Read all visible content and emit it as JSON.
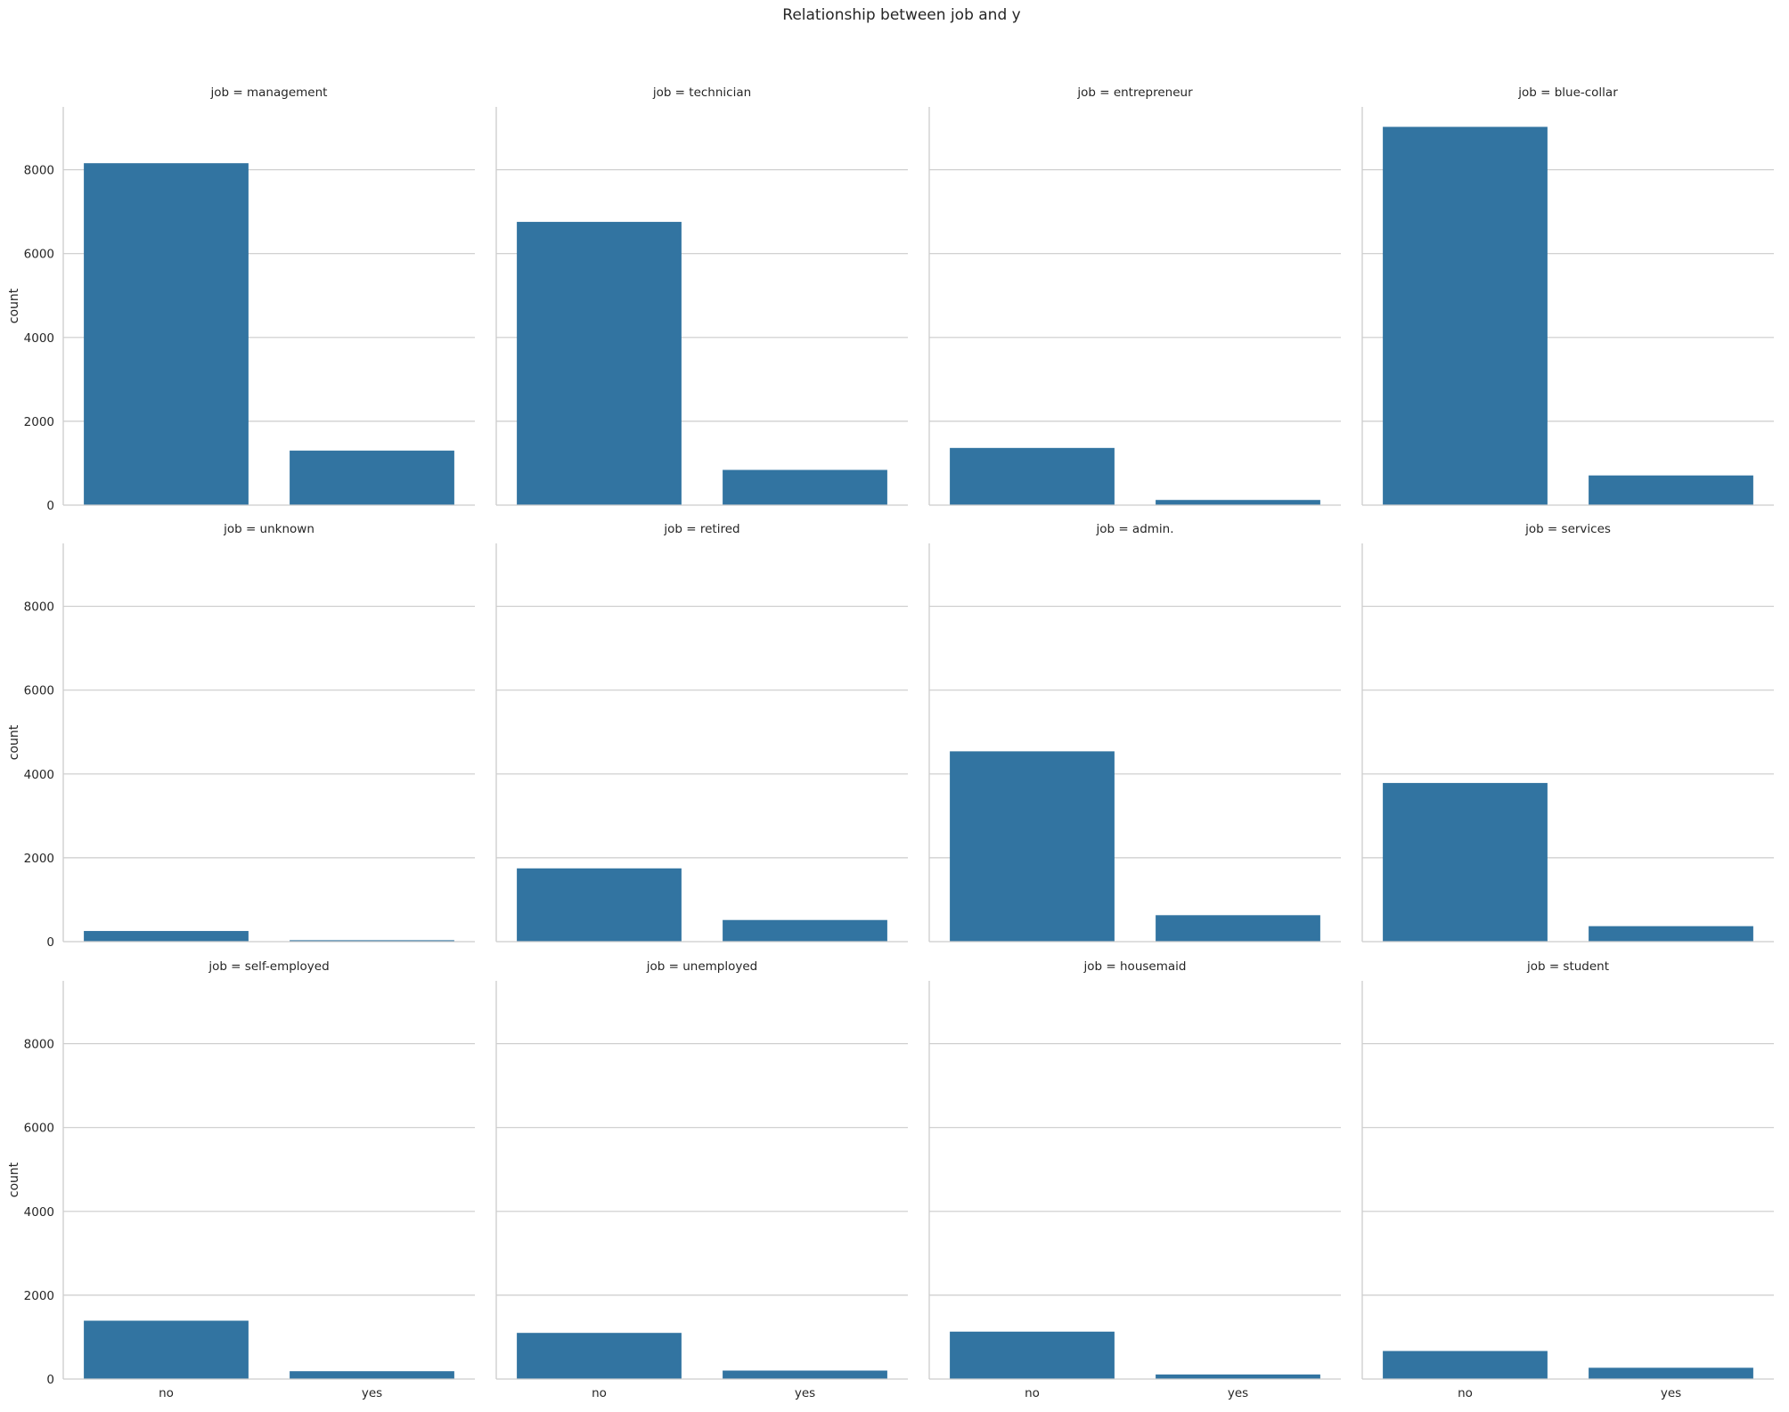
{
  "chart_data": {
    "type": "bar",
    "title": "Relationship between job and y",
    "xlabel": "y",
    "ylabel": "count",
    "categories": [
      "no",
      "yes"
    ],
    "ylim": [
      0,
      9500
    ],
    "yticks": [
      0,
      2000,
      4000,
      6000,
      8000
    ],
    "grid": true,
    "bar_color": "#3274a1",
    "facets": [
      {
        "title": "job = management",
        "values": [
          8157,
          1301
        ]
      },
      {
        "title": "job = technician",
        "values": [
          6757,
          840
        ]
      },
      {
        "title": "job = entrepreneur",
        "values": [
          1364,
          123
        ]
      },
      {
        "title": "job = blue-collar",
        "values": [
          9024,
          708
        ]
      },
      {
        "title": "job = unknown",
        "values": [
          254,
          34
        ]
      },
      {
        "title": "job = retired",
        "values": [
          1748,
          516
        ]
      },
      {
        "title": "job = admin.",
        "values": [
          4540,
          631
        ]
      },
      {
        "title": "job = services",
        "values": [
          3785,
          369
        ]
      },
      {
        "title": "job = self-employed",
        "values": [
          1392,
          187
        ]
      },
      {
        "title": "job = unemployed",
        "values": [
          1101,
          202
        ]
      },
      {
        "title": "job = housemaid",
        "values": [
          1131,
          109
        ]
      },
      {
        "title": "job = student",
        "values": [
          669,
          269
        ]
      }
    ]
  }
}
